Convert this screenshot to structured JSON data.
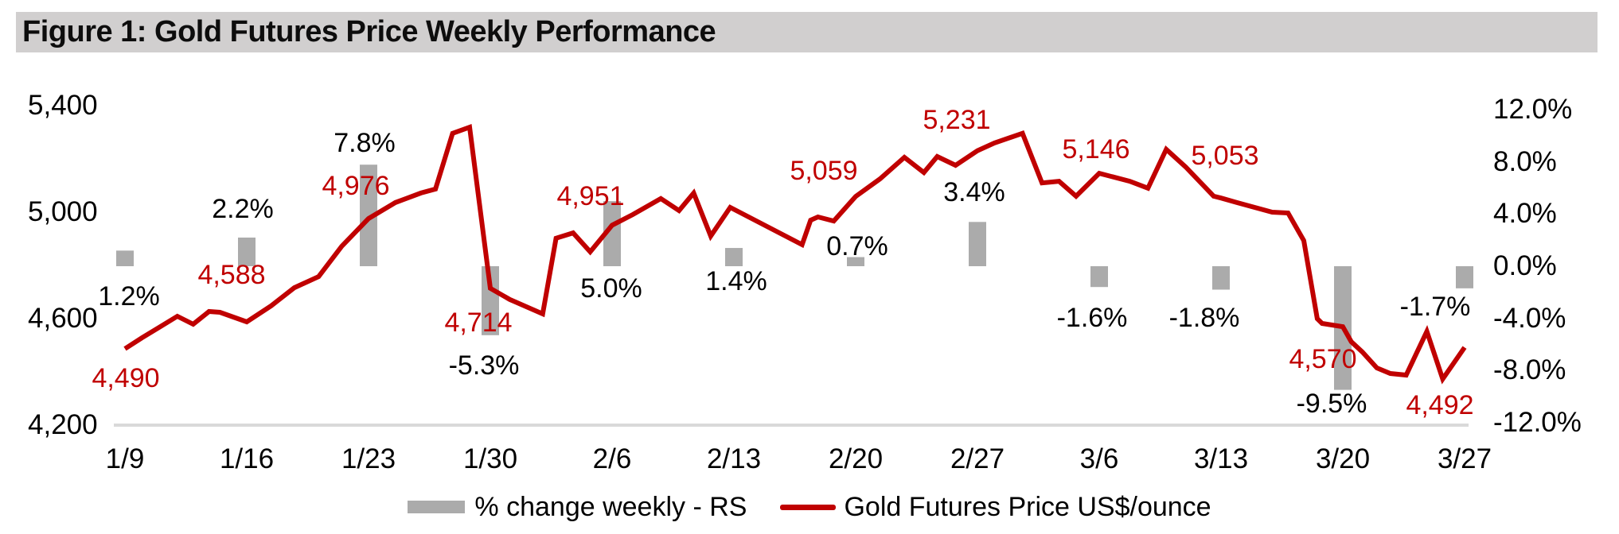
{
  "title": "Figure 1: Gold Futures Price Weekly Performance",
  "legend": {
    "bar_label": "% change weekly - RS",
    "line_label": "Gold Futures Price US$/ounce"
  },
  "colors": {
    "line": "#c00000",
    "bar": "#ababab",
    "title_band": "#d1cfcf",
    "baseline": "#d9d9d9",
    "price_label": "#c00000",
    "text": "#000000"
  },
  "chart_data": {
    "type": "bar+line combo",
    "title": "Figure 1: Gold Futures Price Weekly Performance",
    "categories": [
      "1/9",
      "1/16",
      "1/23",
      "1/30",
      "2/6",
      "2/13",
      "2/20",
      "2/27",
      "3/6",
      "3/13",
      "3/20",
      "3/27"
    ],
    "legend_position": "bottom",
    "grid": false,
    "left_axis": {
      "title": "Gold Futures Price US$/ounce",
      "ticks": [
        "5,400",
        "5,000",
        "4,600",
        "4,200"
      ],
      "values": [
        5400,
        5000,
        4600,
        4200
      ],
      "range": [
        4200,
        5400
      ]
    },
    "right_axis": {
      "title": "% change weekly",
      "ticks": [
        "12.0%",
        "8.0%",
        "4.0%",
        "0.0%",
        "-4.0%",
        "-8.0%",
        "-12.0%"
      ],
      "values": [
        12,
        8,
        4,
        0,
        -4,
        -8,
        -12
      ],
      "range": [
        -12,
        12
      ]
    },
    "series": [
      {
        "name": "% change weekly - RS",
        "type": "bar",
        "axis": "right",
        "unit": "%",
        "values": [
          1.2,
          2.2,
          7.8,
          -5.3,
          5.0,
          1.4,
          0.7,
          3.4,
          -1.6,
          -1.8,
          -9.5,
          -1.7
        ],
        "labels": [
          "1.2%",
          "2.2%",
          "7.8%",
          "-5.3%",
          "5.0%",
          "1.4%",
          "0.7%",
          "3.4%",
          "-1.6%",
          "-1.8%",
          "-9.5%",
          "-1.7%"
        ]
      },
      {
        "name": "Gold Futures Price US$/ounce",
        "type": "line",
        "axis": "left",
        "unit": "US$/ounce",
        "weekly_values": [
          4490,
          4588,
          4976,
          4714,
          4951,
          null,
          5059,
          5231,
          5146,
          5053,
          4570,
          4492
        ],
        "weekly_labels": [
          "4,490",
          "4,588",
          "4,976",
          "4,714",
          "4,951",
          null,
          "5,059",
          "5,231",
          "5,146",
          "5,053",
          "4,570",
          "4,492"
        ],
        "daily_path": [
          [
            0,
            4487
          ],
          [
            0.14,
            4528
          ],
          [
            0.28,
            4567
          ],
          [
            0.43,
            4609
          ],
          [
            0.56,
            4579
          ],
          [
            0.69,
            4627
          ],
          [
            0.78,
            4624
          ],
          [
            1,
            4588
          ],
          [
            1.2,
            4648
          ],
          [
            1.39,
            4716
          ],
          [
            1.59,
            4758
          ],
          [
            1.78,
            4872
          ],
          [
            2,
            4976
          ],
          [
            2.22,
            5036
          ],
          [
            2.43,
            5072
          ],
          [
            2.55,
            5087
          ],
          [
            2.69,
            5296
          ],
          [
            2.83,
            5319
          ],
          [
            3,
            4714
          ],
          [
            3.16,
            4672
          ],
          [
            3.43,
            4618
          ],
          [
            3.54,
            4902
          ],
          [
            3.68,
            4922
          ],
          [
            3.82,
            4851
          ],
          [
            4,
            4951
          ],
          [
            4.17,
            4991
          ],
          [
            4.4,
            5051
          ],
          [
            4.55,
            5006
          ],
          [
            4.67,
            5072
          ],
          [
            4.81,
            4910
          ],
          [
            4.97,
            5018
          ],
          [
            5.56,
            4878
          ],
          [
            5.63,
            4970
          ],
          [
            5.69,
            4982
          ],
          [
            5.82,
            4967
          ],
          [
            6,
            5059
          ],
          [
            6.2,
            5125
          ],
          [
            6.4,
            5206
          ],
          [
            6.56,
            5149
          ],
          [
            6.67,
            5209
          ],
          [
            6.82,
            5176
          ],
          [
            7,
            5231
          ],
          [
            7.14,
            5260
          ],
          [
            7.37,
            5296
          ],
          [
            7.53,
            5110
          ],
          [
            7.67,
            5116
          ],
          [
            7.81,
            5060
          ],
          [
            8,
            5146
          ],
          [
            8.25,
            5116
          ],
          [
            8.4,
            5090
          ],
          [
            8.55,
            5236
          ],
          [
            8.71,
            5170
          ],
          [
            8.94,
            5060
          ],
          [
            9,
            5053
          ],
          [
            9.13,
            5036
          ],
          [
            9.42,
            5000
          ],
          [
            9.55,
            4997
          ],
          [
            9.68,
            4893
          ],
          [
            9.79,
            4600
          ],
          [
            9.83,
            4582
          ],
          [
            10,
            4570
          ],
          [
            10.07,
            4513
          ],
          [
            10.16,
            4475
          ],
          [
            10.28,
            4415
          ],
          [
            10.39,
            4394
          ],
          [
            10.52,
            4388
          ],
          [
            10.69,
            4552
          ],
          [
            10.82,
            4373
          ],
          [
            11,
            4492
          ]
        ]
      }
    ]
  }
}
